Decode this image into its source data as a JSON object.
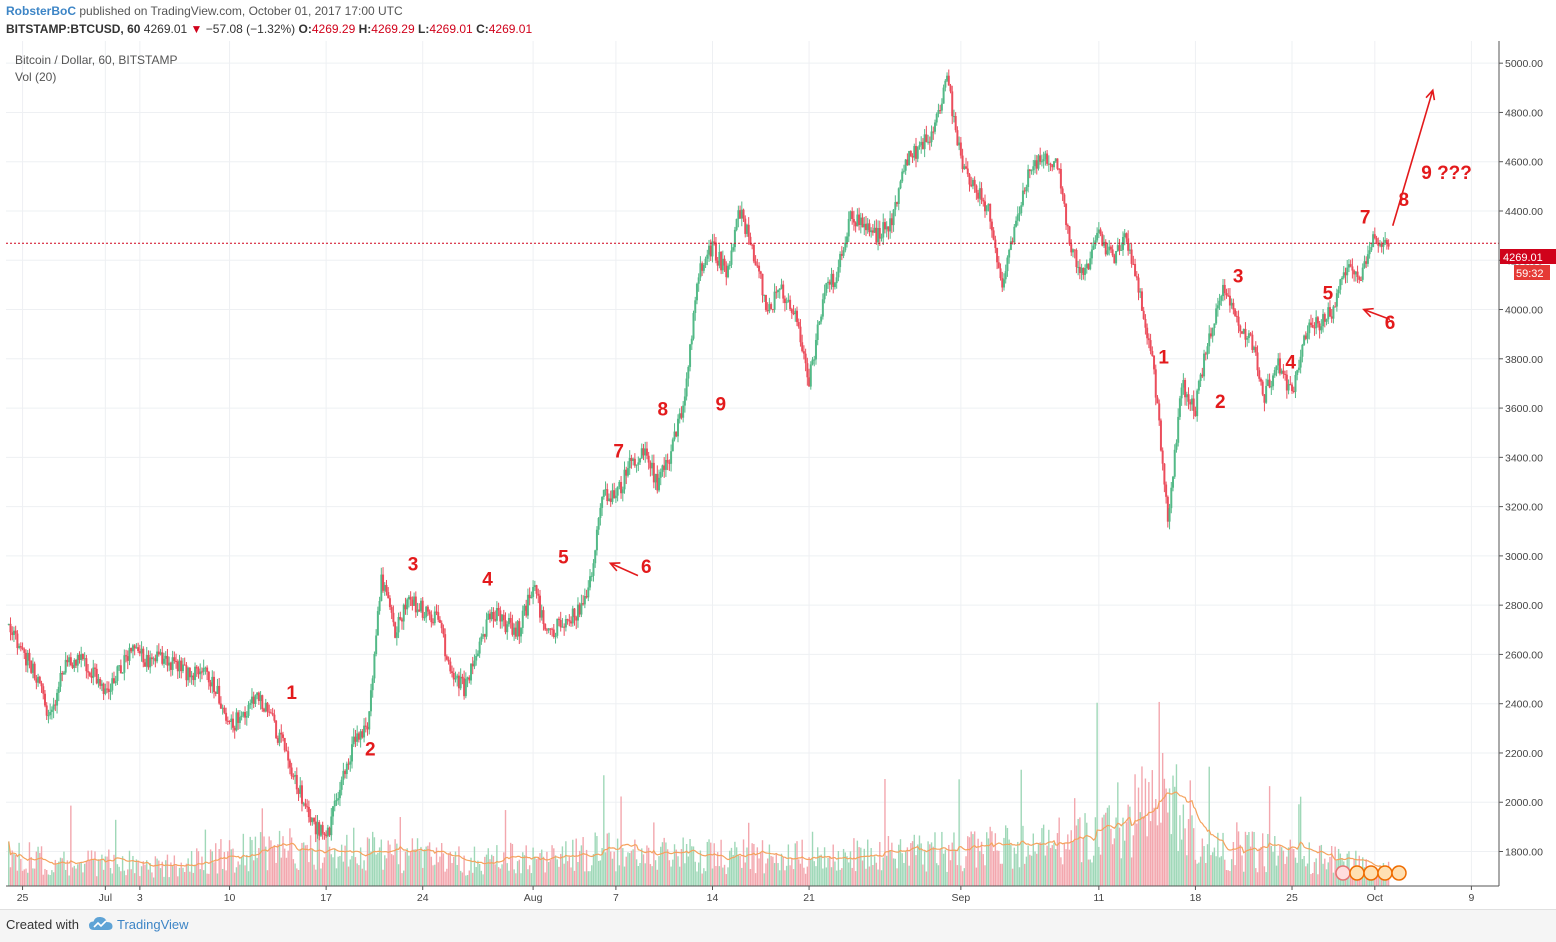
{
  "header": {
    "user": "RobsterBoC",
    "published": "published on TradingView.com, October 01, 2017 17:00 UTC",
    "symbol": "BITSTAMP:BTCUSD, 60",
    "last": "4269.01",
    "change": "−57.08 (−1.32%)",
    "o_label": "O:",
    "o": "4269.29",
    "h_label": "H:",
    "h": "4269.29",
    "l_label": "L:",
    "l": "4269.01",
    "c_label": "C:",
    "c": "4269.01"
  },
  "chart_data": {
    "type": "candlestick",
    "title": "Bitcoin / Dollar, 60, BITSTAMP",
    "indicator": "Vol (20)",
    "x_tick_labels": [
      "25",
      "Jul",
      "3",
      "10",
      "17",
      "24",
      "Aug",
      "7",
      "14",
      "21",
      "Sep",
      "11",
      "18",
      "25",
      "Oct",
      "9"
    ],
    "x_tick_days": [
      -6,
      0,
      2.5,
      9,
      16,
      23,
      31,
      37,
      44,
      51,
      62,
      72,
      79,
      86,
      92,
      99
    ],
    "y_tick_labels": [
      "1800.00",
      "2000.00",
      "2200.00",
      "2400.00",
      "2600.00",
      "2800.00",
      "3000.00",
      "3200.00",
      "3400.00",
      "3600.00",
      "3800.00",
      "4000.00",
      "4200.00",
      "4400.00",
      "4600.00",
      "4800.00",
      "5000.00"
    ],
    "y_ticks": [
      1800,
      2000,
      2200,
      2400,
      2600,
      2800,
      3000,
      3200,
      3400,
      3600,
      3800,
      4000,
      4200,
      4400,
      4600,
      4800,
      5000
    ],
    "ylim": [
      1660,
      5090
    ],
    "xlim_days": [
      -7.2,
      101
    ],
    "last_price": 4269.01,
    "last_price_label": "4269.01",
    "countdown_label": "59:32",
    "price_path": [
      [
        -7,
        2720
      ],
      [
        -6,
        2610
      ],
      [
        -5,
        2520
      ],
      [
        -4,
        2340
      ],
      [
        -3,
        2560
      ],
      [
        -2,
        2580
      ],
      [
        -1,
        2540
      ],
      [
        0,
        2430
      ],
      [
        1,
        2540
      ],
      [
        2,
        2620
      ],
      [
        3,
        2570
      ],
      [
        4,
        2600
      ],
      [
        5,
        2560
      ],
      [
        6,
        2520
      ],
      [
        7,
        2540
      ],
      [
        8,
        2470
      ],
      [
        9,
        2310
      ],
      [
        10,
        2350
      ],
      [
        11,
        2420
      ],
      [
        12,
        2340
      ],
      [
        13,
        2210
      ],
      [
        14,
        2050
      ],
      [
        15,
        1920
      ],
      [
        16,
        1850
      ],
      [
        17,
        2050
      ],
      [
        18,
        2250
      ],
      [
        19,
        2320
      ],
      [
        20,
        2900
      ],
      [
        21,
        2700
      ],
      [
        22,
        2820
      ],
      [
        23,
        2780
      ],
      [
        24,
        2750
      ],
      [
        25,
        2550
      ],
      [
        26,
        2460
      ],
      [
        27,
        2620
      ],
      [
        28,
        2780
      ],
      [
        29,
        2720
      ],
      [
        30,
        2700
      ],
      [
        31,
        2880
      ],
      [
        32,
        2680
      ],
      [
        33,
        2720
      ],
      [
        34,
        2760
      ],
      [
        35,
        2840
      ],
      [
        36,
        3250
      ],
      [
        37,
        3230
      ],
      [
        38,
        3380
      ],
      [
        39,
        3430
      ],
      [
        40,
        3300
      ],
      [
        41,
        3420
      ],
      [
        42,
        3650
      ],
      [
        43,
        4150
      ],
      [
        44,
        4250
      ],
      [
        45,
        4150
      ],
      [
        46,
        4400
      ],
      [
        47,
        4230
      ],
      [
        48,
        4000
      ],
      [
        49,
        4080
      ],
      [
        50,
        4000
      ],
      [
        51,
        3700
      ],
      [
        52,
        4050
      ],
      [
        53,
        4150
      ],
      [
        54,
        4380
      ],
      [
        55,
        4330
      ],
      [
        56,
        4300
      ],
      [
        57,
        4360
      ],
      [
        58,
        4600
      ],
      [
        59,
        4650
      ],
      [
        60,
        4720
      ],
      [
        61,
        4950
      ],
      [
        62,
        4600
      ],
      [
        63,
        4500
      ],
      [
        64,
        4400
      ],
      [
        65,
        4100
      ],
      [
        66,
        4350
      ],
      [
        67,
        4580
      ],
      [
        68,
        4630
      ],
      [
        69,
        4600
      ],
      [
        70,
        4230
      ],
      [
        71,
        4150
      ],
      [
        72,
        4300
      ],
      [
        73,
        4200
      ],
      [
        74,
        4300
      ],
      [
        75,
        4050
      ],
      [
        76,
        3750
      ],
      [
        77,
        3150
      ],
      [
        78,
        3700
      ],
      [
        79,
        3600
      ],
      [
        80,
        3900
      ],
      [
        81,
        4100
      ],
      [
        82,
        3950
      ],
      [
        83,
        3880
      ],
      [
        84,
        3650
      ],
      [
        85,
        3780
      ],
      [
        86,
        3650
      ],
      [
        87,
        3900
      ],
      [
        88,
        3950
      ],
      [
        89,
        4000
      ],
      [
        90,
        4180
      ],
      [
        91,
        4120
      ],
      [
        92,
        4300
      ],
      [
        93,
        4269
      ]
    ],
    "volume_envelope": [
      [
        -7,
        0.3
      ],
      [
        5,
        0.2
      ],
      [
        10,
        0.35
      ],
      [
        16,
        0.4
      ],
      [
        20,
        0.35
      ],
      [
        26,
        0.25
      ],
      [
        36,
        0.35
      ],
      [
        44,
        0.3
      ],
      [
        52,
        0.3
      ],
      [
        61,
        0.35
      ],
      [
        70,
        0.45
      ],
      [
        77,
        0.9
      ],
      [
        80,
        0.4
      ],
      [
        90,
        0.25
      ],
      [
        93,
        0.2
      ]
    ],
    "annotations": [
      {
        "text": "1",
        "day": 13.5,
        "price": 2420
      },
      {
        "text": "2",
        "day": 19.2,
        "price": 2190
      },
      {
        "text": "3",
        "day": 22.3,
        "price": 2940
      },
      {
        "text": "4",
        "day": 27.7,
        "price": 2880
      },
      {
        "text": "5",
        "day": 33.2,
        "price": 2970
      },
      {
        "text": "6",
        "day": 39.2,
        "price": 2930
      },
      {
        "text": "7",
        "day": 37.2,
        "price": 3400
      },
      {
        "text": "8",
        "day": 40.4,
        "price": 3570
      },
      {
        "text": "9",
        "day": 44.6,
        "price": 3590
      },
      {
        "text": "1",
        "day": 76.7,
        "price": 3780
      },
      {
        "text": "2",
        "day": 80.8,
        "price": 3600
      },
      {
        "text": "3",
        "day": 82.1,
        "price": 4110
      },
      {
        "text": "4",
        "day": 85.9,
        "price": 3760
      },
      {
        "text": "5",
        "day": 88.6,
        "price": 4040
      },
      {
        "text": "6",
        "day": 93.1,
        "price": 3920
      },
      {
        "text": "7",
        "day": 91.3,
        "price": 4350
      },
      {
        "text": "8",
        "day": 94.1,
        "price": 4420
      },
      {
        "text": "9 ???",
        "day": 97.2,
        "price": 4530
      }
    ]
  }
}
